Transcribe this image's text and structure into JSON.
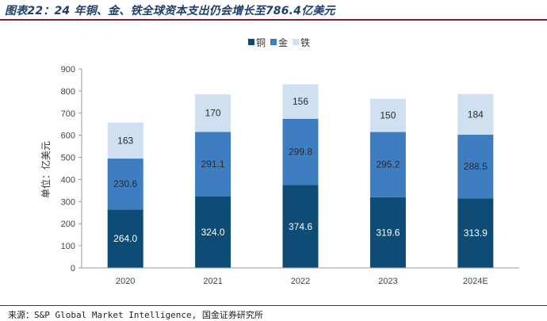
{
  "page": {
    "title": "图表22：24 年铜、金、铁全球资本支出仍会增长至786.4亿美元",
    "source": "来源：S&P Global Market Intelligence, 国金证券研究所"
  },
  "chart_data": {
    "type": "bar",
    "stacked": true,
    "title": "24 年铜、金、铁全球资本支出仍会增长至786.4亿美元",
    "ylabel": "单位：亿美元",
    "xlabel": "",
    "ylim": [
      0,
      900
    ],
    "yticks": [
      0,
      100,
      200,
      300,
      400,
      500,
      600,
      700,
      800,
      900
    ],
    "categories": [
      "2020",
      "2021",
      "2022",
      "2023",
      "2024E"
    ],
    "series": [
      {
        "name": "铜",
        "color": "#0f4c75",
        "label_color": "#ffffff",
        "values": [
          264.0,
          324.0,
          374.6,
          319.6,
          313.9
        ],
        "labels": [
          "264.0",
          "324.0",
          "374.6",
          "319.6",
          "313.9"
        ]
      },
      {
        "name": "金",
        "color": "#3f7dc1",
        "label_color": "#2b2b2b",
        "values": [
          230.6,
          291.1,
          299.8,
          295.2,
          288.5
        ],
        "labels": [
          "230.6",
          "291.1",
          "299.8",
          "295.2",
          "288.5"
        ]
      },
      {
        "name": "铁",
        "color": "#cfe0f1",
        "label_color": "#2b2b2b",
        "values": [
          163,
          170,
          156,
          150,
          184
        ],
        "labels": [
          "163",
          "170",
          "156",
          "150",
          "184"
        ]
      }
    ],
    "legend_position": "top-center",
    "grid": false
  }
}
